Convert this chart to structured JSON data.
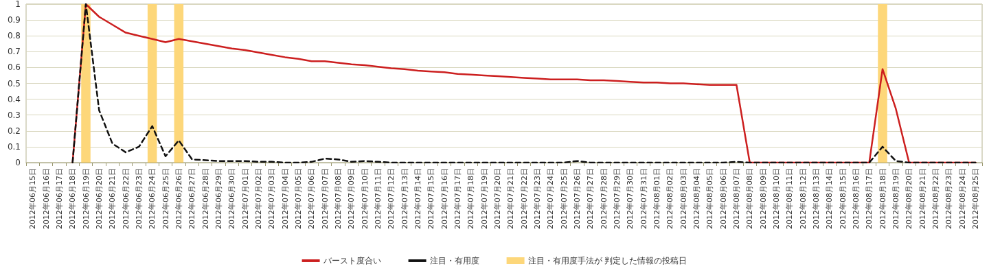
{
  "chart_data": {
    "type": "line",
    "categories": [
      "2012年06月15日",
      "2012年06月16日",
      "2012年06月17日",
      "2012年06月18日",
      "2012年06月19日",
      "2012年06月20日",
      "2012年06月21日",
      "2012年06月22日",
      "2012年06月23日",
      "2012年06月24日",
      "2012年06月25日",
      "2012年06月26日",
      "2012年06月27日",
      "2012年06月28日",
      "2012年06月29日",
      "2012年06月30日",
      "2012年07月01日",
      "2012年07月02日",
      "2012年07月03日",
      "2012年07月04日",
      "2012年07月05日",
      "2012年07月06日",
      "2012年07月07日",
      "2012年07月08日",
      "2012年07月09日",
      "2012年07月10日",
      "2012年07月11日",
      "2012年07月12日",
      "2012年07月13日",
      "2012年07月14日",
      "2012年07月15日",
      "2012年07月16日",
      "2012年07月17日",
      "2012年07月18日",
      "2012年07月19日",
      "2012年07月20日",
      "2012年07月21日",
      "2012年07月22日",
      "2012年07月23日",
      "2012年07月24日",
      "2012年07月25日",
      "2012年07月26日",
      "2012年07月27日",
      "2012年07月28日",
      "2012年07月29日",
      "2012年07月30日",
      "2012年07月31日",
      "2012年08月01日",
      "2012年08月02日",
      "2012年08月03日",
      "2012年08月04日",
      "2012年08月05日",
      "2012年08月06日",
      "2012年08月07日",
      "2012年08月08日",
      "2012年08月09日",
      "2012年08月10日",
      "2012年08月11日",
      "2012年08月12日",
      "2012年08月13日",
      "2012年08月14日",
      "2012年08月15日",
      "2012年08月16日",
      "2012年08月17日",
      "2012年08月18日",
      "2012年08月19日",
      "2012年08月20日",
      "2012年08月21日",
      "2012年08月22日",
      "2012年08月23日",
      "2012年08月24日",
      "2012年08月25日"
    ],
    "series": [
      {
        "name": "バースト度合い",
        "color": "#cc1f1f",
        "line_style": "solid",
        "values": [
          null,
          null,
          null,
          0,
          1,
          0.92,
          0.87,
          0.82,
          0.8,
          0.78,
          0.76,
          0.78,
          0.765,
          0.75,
          0.735,
          0.72,
          0.71,
          0.695,
          0.68,
          0.665,
          0.655,
          0.64,
          0.64,
          0.63,
          0.62,
          0.615,
          0.605,
          0.595,
          0.59,
          0.58,
          0.575,
          0.57,
          0.56,
          0.555,
          0.55,
          0.545,
          0.54,
          0.535,
          0.53,
          0.525,
          0.525,
          0.525,
          0.52,
          0.52,
          0.515,
          0.51,
          0.505,
          0.505,
          0.5,
          0.5,
          0.495,
          0.49,
          0.49,
          0.49,
          0,
          0,
          0,
          0,
          0,
          0,
          0,
          0,
          0,
          0,
          0.59,
          0.34,
          0,
          0,
          0,
          0,
          0,
          0
        ]
      },
      {
        "name": "注目・有用度",
        "color": "#111111",
        "line_style": "dashed",
        "values": [
          null,
          null,
          null,
          0,
          1,
          0.33,
          0.12,
          0.065,
          0.1,
          0.23,
          0.04,
          0.14,
          0.02,
          0.015,
          0.01,
          0.01,
          0.01,
          0.005,
          0.005,
          0,
          0,
          0.005,
          0.025,
          0.02,
          0.005,
          0.01,
          0.005,
          0,
          0,
          0,
          0,
          0,
          0,
          0,
          0,
          0,
          0,
          0,
          0,
          0,
          0,
          0.01,
          0,
          0,
          0,
          0,
          0,
          0,
          0,
          0,
          0,
          0,
          0,
          0.005,
          0,
          0,
          0,
          0,
          0,
          0,
          0,
          0,
          0,
          0,
          0.1,
          0.01,
          0,
          0,
          0,
          0,
          0,
          0
        ]
      }
    ],
    "bands": [
      {
        "axis": "x",
        "from": "2012年06月19日",
        "to": "2012年06月19日",
        "label": "注目・有用度手法が 判定した情報の投稿日",
        "color": "#fdd77a"
      },
      {
        "axis": "x",
        "from": "2012年06月24日",
        "to": "2012年06月24日",
        "color": "#fdd77a"
      },
      {
        "axis": "x",
        "from": "2012年06月26日",
        "to": "2012年06月26日",
        "color": "#fdd77a"
      },
      {
        "axis": "x",
        "from": "2012年08月18日",
        "to": "2012年08月18日",
        "color": "#fdd77a"
      }
    ],
    "ylim": [
      0,
      1
    ],
    "yticks": [
      0,
      0.1,
      0.2,
      0.3,
      0.4,
      0.5,
      0.6,
      0.7,
      0.8,
      0.9,
      1
    ],
    "grid": "y",
    "legend": "bottom",
    "marker": "none"
  }
}
